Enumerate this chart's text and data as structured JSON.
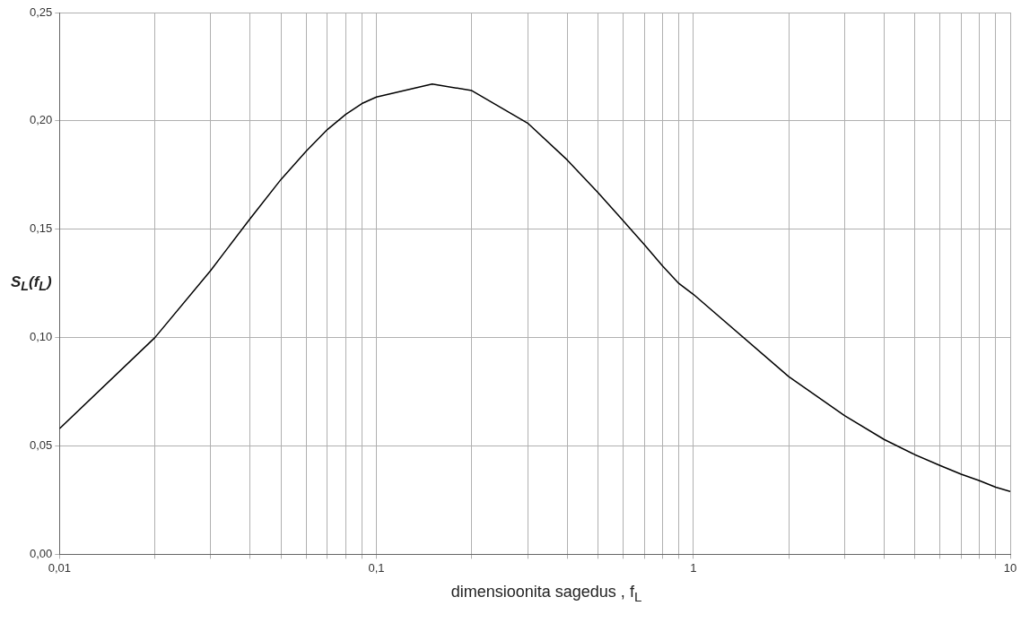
{
  "chart_data": {
    "type": "line",
    "xlabel": "dimensioonita sagedus , f$_{L}$",
    "ylabel": "S$_{L}$(f$_{L}$)",
    "x": [
      0.01,
      0.02,
      0.03,
      0.04,
      0.05,
      0.06,
      0.07,
      0.08,
      0.09,
      0.1,
      0.15,
      0.2,
      0.3,
      0.4,
      0.5,
      0.6,
      0.7,
      0.8,
      0.9,
      1,
      2,
      3,
      4,
      5,
      6,
      7,
      8,
      9,
      10
    ],
    "series": [
      {
        "color": "#000000",
        "values": [
          0.058,
          0.1,
          0.131,
          0.155,
          0.173,
          0.186,
          0.196,
          0.203,
          0.208,
          0.211,
          0.217,
          0.214,
          0.199,
          0.182,
          0.167,
          0.154,
          0.143,
          0.133,
          0.125,
          0.12,
          0.082,
          0.064,
          0.053,
          0.046,
          0.041,
          0.037,
          0.034,
          0.031,
          0.029
        ]
      }
    ],
    "log": "x",
    "xlim": [
      0.01,
      10
    ],
    "xticks": [
      {
        "value": 0.01,
        "label": "0,01"
      },
      {
        "value": 0.02,
        "label": null
      },
      {
        "value": 0.03,
        "label": null
      },
      {
        "value": 0.04,
        "label": null
      },
      {
        "value": 0.05,
        "label": null
      },
      {
        "value": 0.06,
        "label": null
      },
      {
        "value": 0.07,
        "label": null
      },
      {
        "value": 0.08,
        "label": null
      },
      {
        "value": 0.09,
        "label": null
      },
      {
        "value": 0.1,
        "label": "0,1"
      },
      {
        "value": 0.2,
        "label": null
      },
      {
        "value": 0.3,
        "label": null
      },
      {
        "value": 0.4,
        "label": null
      },
      {
        "value": 0.5,
        "label": null
      },
      {
        "value": 0.6,
        "label": null
      },
      {
        "value": 0.7,
        "label": null
      },
      {
        "value": 0.8,
        "label": null
      },
      {
        "value": 0.9,
        "label": null
      },
      1,
      {
        "value": 2,
        "label": null
      },
      {
        "value": 3,
        "label": null
      },
      {
        "value": 4,
        "label": null
      },
      {
        "value": 5,
        "label": null
      },
      {
        "value": 6,
        "label": null
      },
      {
        "value": 7,
        "label": null
      },
      {
        "value": 8,
        "label": null
      },
      {
        "value": 9,
        "label": null
      },
      10
    ],
    "ylim": [
      0,
      0.25
    ],
    "yticks": [
      {
        "value": 0,
        "label": "0,00"
      },
      {
        "value": 0.05,
        "label": "0,05"
      },
      {
        "value": 0.1,
        "label": "0,10"
      },
      {
        "value": 0.15,
        "label": "0,15"
      },
      {
        "value": 0.2,
        "label": "0,20"
      },
      {
        "value": 0.25,
        "label": "0,25"
      }
    ],
    "grid": true,
    "legend": false,
    "marker": "none",
    "line_style": "solid"
  }
}
